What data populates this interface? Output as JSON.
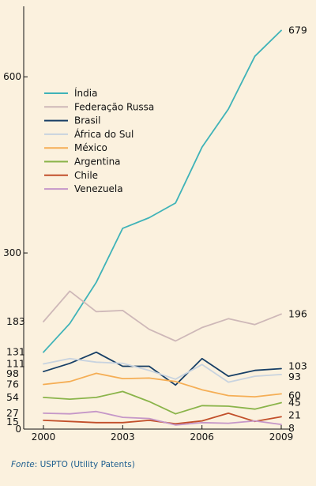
{
  "chart_data": {
    "type": "line",
    "x": [
      2000,
      2001,
      2002,
      2003,
      2004,
      2005,
      2006,
      2007,
      2008,
      2009
    ],
    "x_ticks": [
      "2000",
      "2003",
      "2006",
      "2009"
    ],
    "y_ticks": [
      "0",
      "300",
      "600"
    ],
    "ylim": [
      0,
      720
    ],
    "xlim": [
      2000,
      2009
    ],
    "grid": false,
    "legend_position": "top-left",
    "series": [
      {
        "name": "Índia",
        "color": "#3fb3b8",
        "values": [
          131,
          180,
          250,
          342,
          360,
          385,
          480,
          545,
          635,
          679
        ],
        "start_label": "131",
        "end_label": "679"
      },
      {
        "name": "Federação Russa",
        "color": "#ceb8b8",
        "values": [
          183,
          235,
          200,
          202,
          170,
          150,
          173,
          188,
          178,
          196
        ],
        "start_label": "183",
        "end_label": "196"
      },
      {
        "name": "Brasil",
        "color": "#173f66",
        "values": [
          98,
          112,
          131,
          107,
          107,
          75,
          120,
          90,
          100,
          103
        ],
        "start_label": "98",
        "end_label": "103"
      },
      {
        "name": "África do Sul",
        "color": "#c8d3df",
        "values": [
          111,
          120,
          114,
          112,
          100,
          85,
          110,
          80,
          90,
          93
        ],
        "start_label": "111",
        "end_label": "93"
      },
      {
        "name": "México",
        "color": "#f5ae55",
        "values": [
          76,
          81,
          95,
          86,
          87,
          81,
          67,
          57,
          55,
          60
        ],
        "start_label": "76",
        "end_label": "60"
      },
      {
        "name": "Argentina",
        "color": "#8ab44a",
        "values": [
          54,
          51,
          54,
          64,
          47,
          26,
          40,
          39,
          34,
          45
        ],
        "start_label": "54",
        "end_label": "45"
      },
      {
        "name": "Chile",
        "color": "#c24f2a",
        "values": [
          15,
          13,
          11,
          11,
          15,
          9,
          14,
          27,
          13,
          21
        ],
        "start_label": "15",
        "end_label": "21"
      },
      {
        "name": "Venezuela",
        "color": "#c597c8",
        "values": [
          27,
          26,
          30,
          20,
          18,
          7,
          11,
          10,
          14,
          8
        ],
        "start_label": "27",
        "end_label": "8"
      }
    ]
  },
  "footer": {
    "source_label": "Fonte",
    "source_text": ": USPTO (Utility Patents)"
  }
}
